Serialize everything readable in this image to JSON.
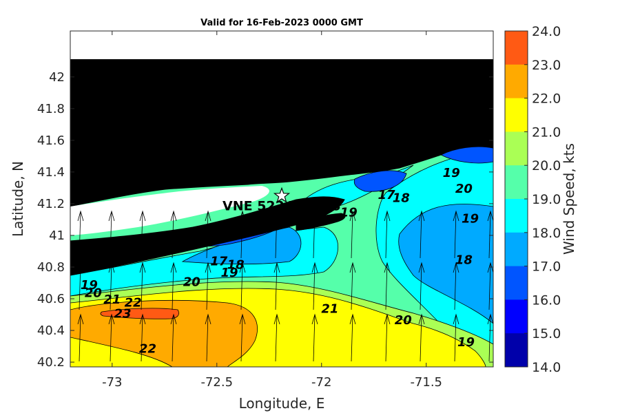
{
  "title": "Valid for 16-Feb-2023 0000 GMT",
  "x_axis": {
    "label": "Longitude, E",
    "ticks": [
      "-73",
      "-72.5",
      "-72",
      "-71.5"
    ],
    "range": [
      -73.2,
      -71.18
    ]
  },
  "y_axis": {
    "label": "Latitude, N",
    "ticks": [
      "40.2",
      "40.4",
      "40.6",
      "40.8",
      "41",
      "41.2",
      "41.4",
      "41.6",
      "41.8",
      "42"
    ],
    "range": [
      40.17,
      42.29
    ]
  },
  "colorbar": {
    "label": "Wind Speed, kts",
    "ticks": [
      "24.0",
      "23.0",
      "22.0",
      "21.0",
      "20.0",
      "19.0",
      "18.0",
      "17.0",
      "16.0",
      "15.0",
      "14.0"
    ],
    "colors": [
      "#ff5a14",
      "#ffaa00",
      "#ffff00",
      "#aaff55",
      "#55ffaa",
      "#00ffff",
      "#00aaff",
      "#0055ff",
      "#0000ff",
      "#0000aa"
    ]
  },
  "station": {
    "label": "VNE 522 VC 106",
    "lon": -72.19,
    "lat": 41.25
  },
  "contour_labels": [
    {
      "text": "17",
      "lon": -71.69,
      "lat": 41.23
    },
    {
      "text": "18",
      "lon": -71.62,
      "lat": 41.21
    },
    {
      "text": "19",
      "lon": -71.87,
      "lat": 41.12
    },
    {
      "text": "19",
      "lon": -71.38,
      "lat": 41.37
    },
    {
      "text": "20",
      "lon": -71.32,
      "lat": 41.27
    },
    {
      "text": "19",
      "lon": -71.29,
      "lat": 41.08
    },
    {
      "text": "18",
      "lon": -71.32,
      "lat": 40.82
    },
    {
      "text": "17",
      "lon": -72.49,
      "lat": 40.81
    },
    {
      "text": "18",
      "lon": -72.41,
      "lat": 40.79
    },
    {
      "text": "19",
      "lon": -72.44,
      "lat": 40.74
    },
    {
      "text": "20",
      "lon": -72.62,
      "lat": 40.68
    },
    {
      "text": "19",
      "lon": -73.11,
      "lat": 40.66
    },
    {
      "text": "20",
      "lon": -73.09,
      "lat": 40.61
    },
    {
      "text": "21",
      "lon": -73.0,
      "lat": 40.57
    },
    {
      "text": "22",
      "lon": -72.9,
      "lat": 40.55
    },
    {
      "text": "23",
      "lon": -72.95,
      "lat": 40.48
    },
    {
      "text": "21",
      "lon": -71.96,
      "lat": 40.51
    },
    {
      "text": "20",
      "lon": -71.61,
      "lat": 40.44
    },
    {
      "text": "19",
      "lon": -71.31,
      "lat": 40.3
    },
    {
      "text": "22",
      "lon": -72.83,
      "lat": 40.26
    }
  ]
}
